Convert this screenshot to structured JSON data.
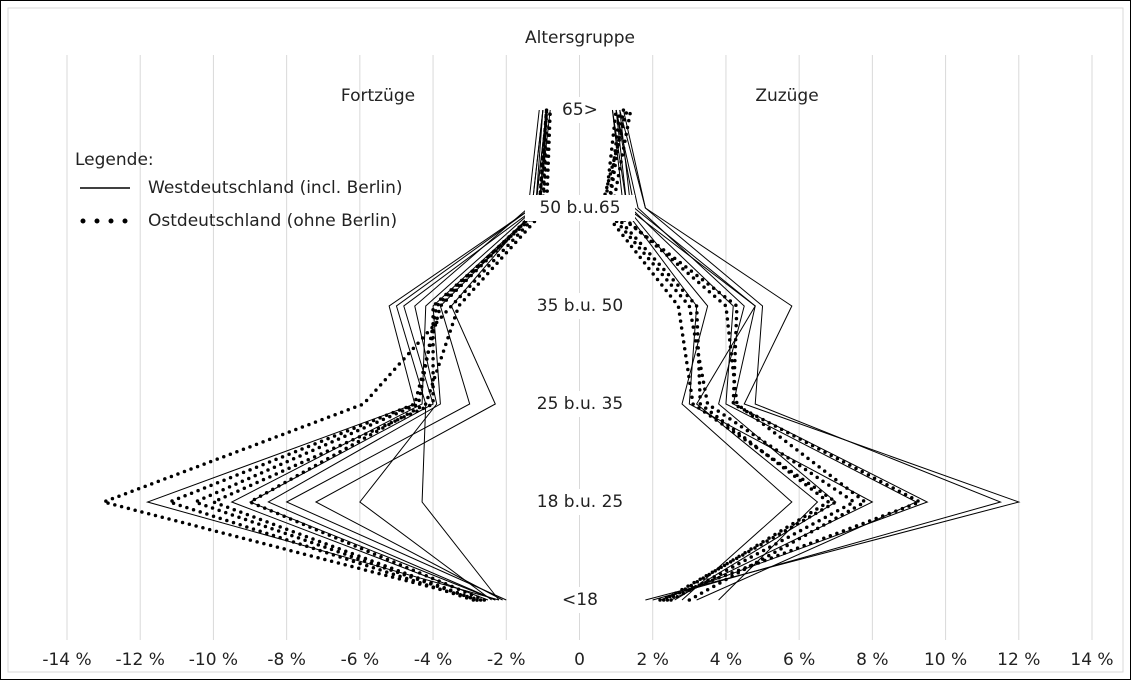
{
  "chart_data": {
    "type": "line",
    "title": "Altersgruppe",
    "left_label": "Fortzüge",
    "right_label": "Zuzüge",
    "legend_title": "Legende:",
    "categories": [
      "<18",
      "18 b.u. 25",
      "25 b.u. 35",
      "35 b.u. 50",
      "50 b.u.65",
      "65>"
    ],
    "xlim": [
      -14,
      14
    ],
    "xticks": [
      {
        "value": -14,
        "label": "-14 %"
      },
      {
        "value": -12,
        "label": "-12 %"
      },
      {
        "value": -10,
        "label": "-10 %"
      },
      {
        "value": -8,
        "label": "-8 %"
      },
      {
        "value": -6,
        "label": "-6 %"
      },
      {
        "value": -4,
        "label": "-4 %"
      },
      {
        "value": -2,
        "label": "-2 %"
      },
      0,
      {
        "value": 2,
        "label": "2 %"
      },
      {
        "value": 4,
        "label": "4 %"
      },
      {
        "value": 6,
        "label": "6 %"
      },
      {
        "value": 8,
        "label": "8 %"
      },
      {
        "value": 10,
        "label": "10 %"
      },
      {
        "value": 12,
        "label": "12 %"
      },
      {
        "value": 14,
        "label": "14 %"
      }
    ],
    "grid": true,
    "series": [
      {
        "name": "Westdeutschland (incl. Berlin)",
        "color": "#000000",
        "dash": "solid",
        "fortzuege": [
          [
            -2.2,
            -11.8,
            -4.5,
            -5.2,
            -1.3,
            -1.0
          ],
          [
            -2.3,
            -9.0,
            -4.0,
            -4.8,
            -1.2,
            -0.9
          ],
          [
            -2.0,
            -8.0,
            -3.0,
            -3.8,
            -1.1,
            -0.9
          ],
          [
            -2.1,
            -7.2,
            -2.3,
            -3.5,
            -1.2,
            -1.0
          ],
          [
            -2.4,
            -6.0,
            -3.9,
            -4.5,
            -1.4,
            -1.1
          ],
          [
            -2.2,
            -4.3,
            -4.2,
            -5.0,
            -1.3,
            -1.0
          ],
          [
            -2.5,
            -9.5,
            -4.3,
            -4.2,
            -1.2,
            -0.9
          ],
          [
            -2.3,
            -8.5,
            -3.8,
            -4.0,
            -1.1,
            -0.8
          ]
        ],
        "zuzuege": [
          [
            1.8,
            12.0,
            4.5,
            5.8,
            1.8,
            1.2
          ],
          [
            2.0,
            11.5,
            4.8,
            5.0,
            1.8,
            1.1
          ],
          [
            2.2,
            9.5,
            4.2,
            4.8,
            1.5,
            1.0
          ],
          [
            2.5,
            8.0,
            3.0,
            3.2,
            1.2,
            0.9
          ],
          [
            2.8,
            5.8,
            2.8,
            3.5,
            1.3,
            0.9
          ],
          [
            2.6,
            7.0,
            3.8,
            4.5,
            1.6,
            1.0
          ],
          [
            3.2,
            9.2,
            4.0,
            4.2,
            1.4,
            1.1
          ],
          [
            3.8,
            6.5,
            3.2,
            4.8,
            1.3,
            1.0
          ]
        ]
      },
      {
        "name": "Ostdeutschland (ohne Berlin)",
        "color": "#000000",
        "dash": "dotted",
        "fortzuege": [
          [
            -2.7,
            -13.0,
            -5.9,
            -3.5,
            -1.0,
            -0.9
          ],
          [
            -2.9,
            -11.2,
            -4.5,
            -3.8,
            -1.1,
            -0.9
          ],
          [
            -2.8,
            -10.0,
            -4.0,
            -4.0,
            -1.0,
            -0.8
          ],
          [
            -2.6,
            -9.0,
            -4.2,
            -3.3,
            -0.9,
            -0.8
          ],
          [
            -2.8,
            -10.5,
            -4.4,
            -3.9,
            -1.1,
            -0.9
          ]
        ],
        "zuzuege": [
          [
            2.2,
            9.3,
            4.2,
            4.3,
            0.8,
            1.2
          ],
          [
            2.5,
            7.5,
            3.5,
            3.0,
            0.7,
            1.0
          ],
          [
            2.3,
            7.0,
            3.1,
            2.7,
            0.6,
            1.3
          ],
          [
            3.0,
            7.8,
            4.3,
            4.0,
            0.9,
            1.4
          ],
          [
            2.4,
            6.8,
            3.3,
            3.2,
            0.8,
            1.1
          ]
        ]
      }
    ]
  }
}
